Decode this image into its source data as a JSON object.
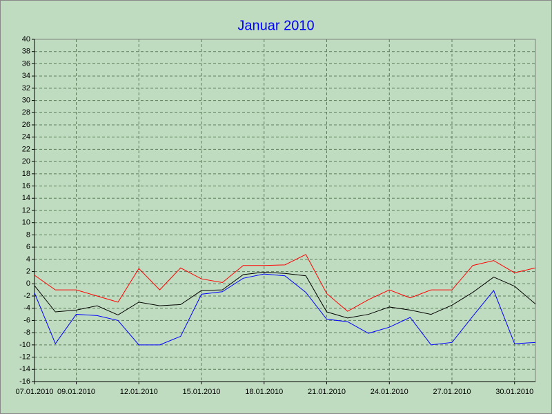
{
  "chart_data": {
    "type": "line",
    "title": "Januar 2010",
    "categories": [
      "07.01.2010",
      null,
      "09.01.2010",
      null,
      null,
      "12.01.2010",
      null,
      null,
      "15.01.2010",
      null,
      null,
      "18.01.2010",
      null,
      null,
      "21.01.2010",
      null,
      null,
      "24.01.2010",
      null,
      null,
      "27.01.2010",
      null,
      null,
      "30.01.2010",
      null
    ],
    "series": [
      {
        "color": "#ff0000",
        "values": [
          1.4,
          -1,
          -1,
          -2,
          -3,
          2.5,
          -1,
          2.6,
          0.8,
          0.2,
          3,
          3,
          3.1,
          4.8,
          -1.6,
          -4.5,
          -2.6,
          -1,
          -2.3,
          -1,
          -1,
          3,
          3.8,
          1.8,
          2.6
        ]
      },
      {
        "color": "#000000",
        "values": [
          -0.3,
          -4.6,
          -4.3,
          -3.6,
          -5.1,
          -3,
          -3.6,
          -3.4,
          -1.1,
          -1,
          1.5,
          1.9,
          1.7,
          1.3,
          -4.6,
          -5.6,
          -5,
          -3.8,
          -4.3,
          -5,
          -3.5,
          -1.4,
          1.1,
          -0.4,
          -3.3
        ]
      },
      {
        "color": "#0000ff",
        "values": [
          -1.5,
          -9.8,
          -5,
          -5.2,
          -6,
          -10,
          -10,
          -8.6,
          -1.7,
          -1.3,
          0.9,
          1.6,
          1.3,
          -1.4,
          -5.8,
          -6.2,
          -8.1,
          -7.1,
          -5.5,
          -10,
          -9.6,
          -5.3,
          -1.1,
          -9.8,
          -9.6
        ]
      }
    ],
    "ylim": [
      -16,
      40
    ],
    "yticks": [
      -16,
      -14,
      -12,
      -10,
      -8,
      -6,
      -4,
      -2,
      0,
      2,
      4,
      6,
      8,
      10,
      12,
      14,
      16,
      18,
      20,
      22,
      24,
      26,
      28,
      30,
      32,
      34,
      36,
      38,
      40
    ],
    "grid": true
  }
}
